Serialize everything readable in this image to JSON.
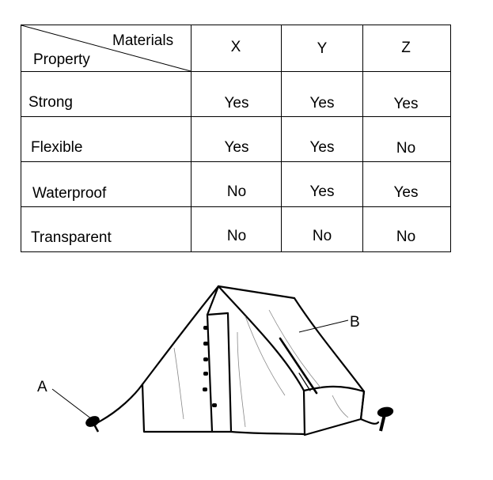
{
  "table": {
    "header": {
      "diagonal_top": "Materials",
      "diagonal_bottom": "Property",
      "materials": [
        "X",
        "Y",
        "Z"
      ]
    },
    "rows": [
      {
        "property": "Strong",
        "values": [
          "Yes",
          "Yes",
          "Yes"
        ]
      },
      {
        "property": "Flexible",
        "values": [
          "Yes",
          "Yes",
          "No"
        ]
      },
      {
        "property": "Waterproof",
        "values": [
          "No",
          "Yes",
          "Yes"
        ]
      },
      {
        "property": "Transparent",
        "values": [
          "No",
          "No",
          "No"
        ]
      }
    ]
  },
  "figure": {
    "label_a": "A",
    "label_b": "B"
  }
}
